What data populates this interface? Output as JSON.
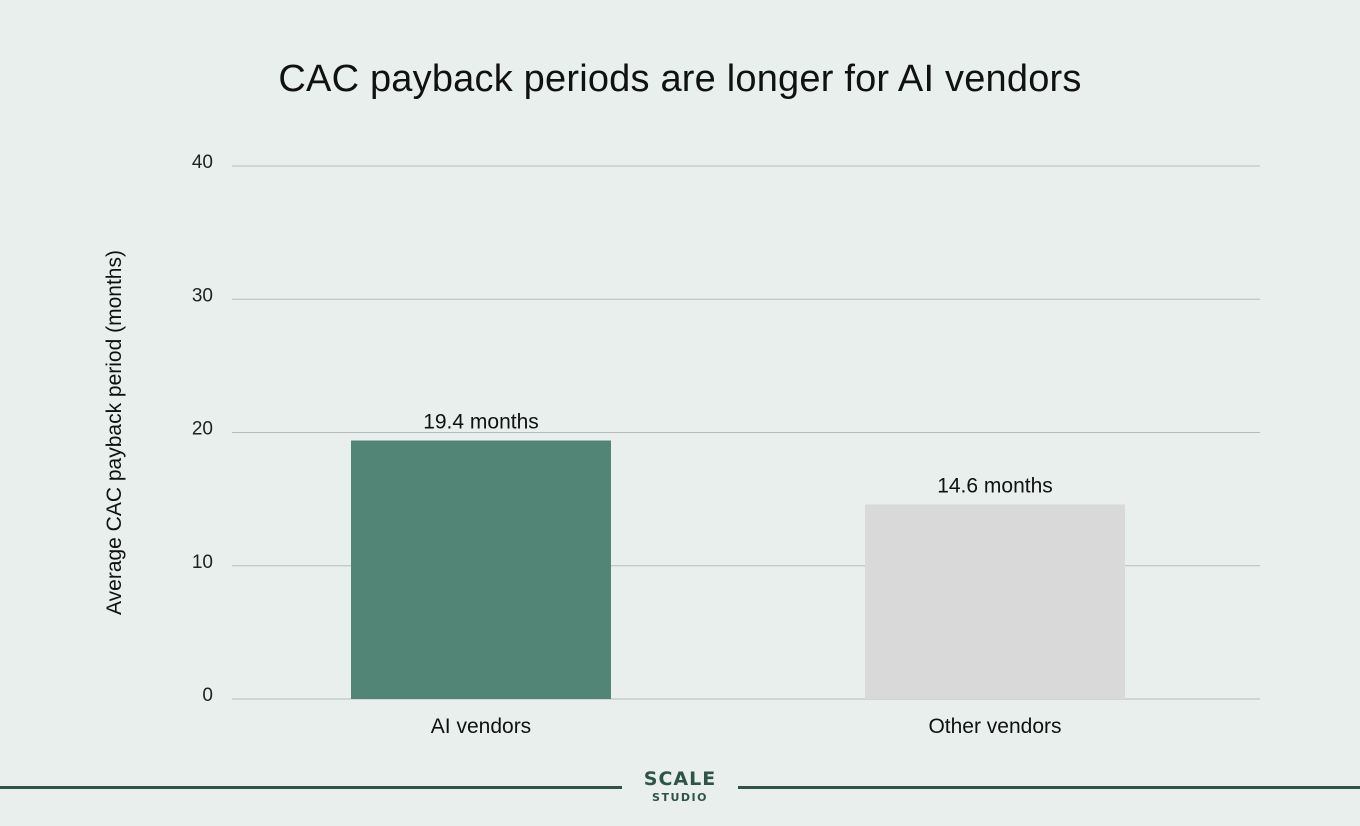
{
  "chart_data": {
    "type": "bar",
    "title": "CAC payback periods are longer for AI vendors",
    "xlabel": "",
    "ylabel": "Average CAC payback period  (months)",
    "ylim": [
      0,
      40
    ],
    "yticks": [
      0,
      10,
      20,
      30,
      40
    ],
    "grid": true,
    "categories": [
      "AI vendors",
      "Other vendors"
    ],
    "values": [
      19.4,
      14.6
    ],
    "data_labels": [
      "19.4 months",
      "14.6 months"
    ],
    "colors": [
      "#538577",
      "#d9d9d9"
    ]
  },
  "branding": {
    "name": "SCALE",
    "sub": "STUDIO",
    "color": "#2f5447"
  }
}
